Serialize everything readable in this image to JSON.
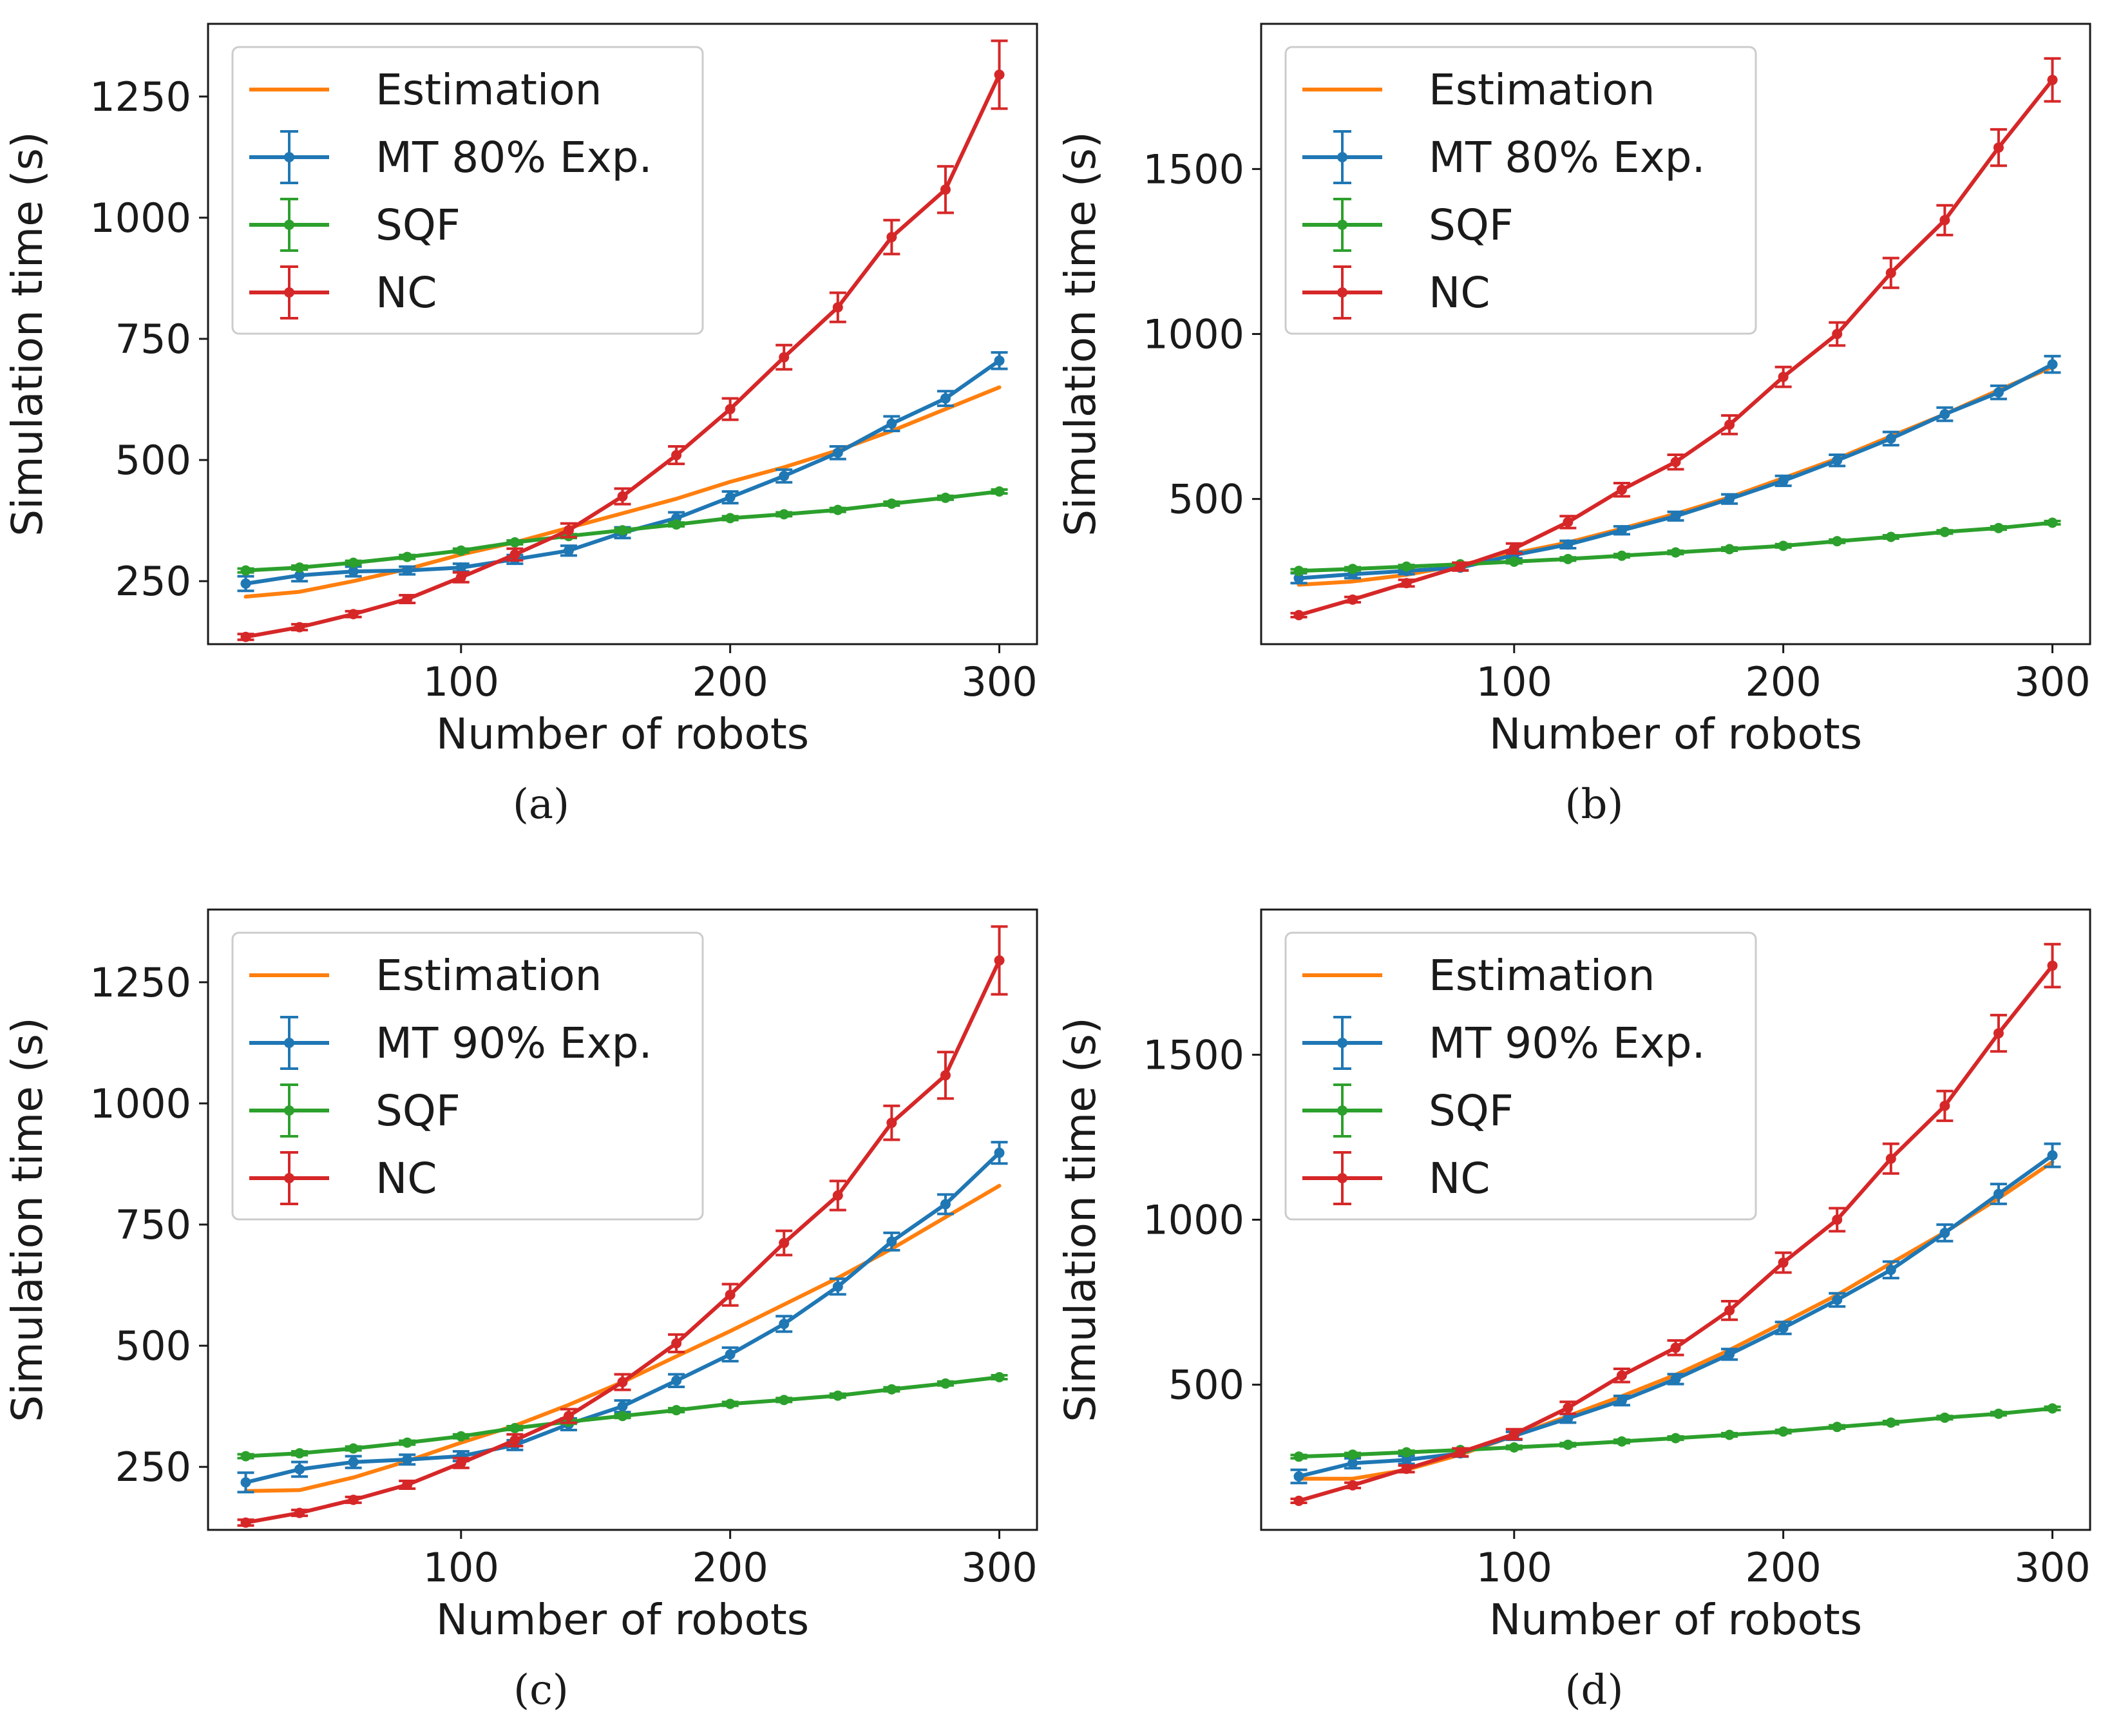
{
  "chart_data": [
    {
      "type": "line",
      "caption": "(a)",
      "xlabel": "Number of robots",
      "ylabel": "Simulation time (s)",
      "xlim": [
        6,
        314
      ],
      "ylim": [
        120,
        1400
      ],
      "xticks": [
        100,
        200,
        300
      ],
      "yticks": [
        250,
        500,
        750,
        1000,
        1250
      ],
      "grid": false,
      "legend_position": "top-left",
      "x": [
        20,
        40,
        60,
        80,
        100,
        120,
        140,
        160,
        180,
        200,
        220,
        240,
        260,
        280,
        300
      ],
      "series": [
        {
          "name": "Estimation",
          "color": "#ff7f0e",
          "marker": false,
          "values": [
            218,
            228,
            250,
            275,
            305,
            330,
            360,
            390,
            420,
            455,
            485,
            520,
            560,
            605,
            650
          ]
        },
        {
          "name": "MT 80% Exp.",
          "color": "#1f77b4",
          "marker": true,
          "values": [
            245,
            262,
            270,
            272,
            278,
            295,
            313,
            350,
            380,
            423,
            467,
            515,
            575,
            627,
            705
          ],
          "errors": [
            15,
            12,
            10,
            8,
            8,
            9,
            10,
            11,
            12,
            12,
            13,
            13,
            15,
            15,
            17
          ]
        },
        {
          "name": "SQF",
          "color": "#2ca02c",
          "marker": true,
          "values": [
            272,
            278,
            288,
            300,
            313,
            330,
            343,
            355,
            367,
            380,
            388,
            397,
            410,
            422,
            435
          ],
          "errors": [
            4,
            4,
            4,
            4,
            4,
            4,
            4,
            4,
            4,
            4,
            4,
            4,
            4,
            4,
            4
          ]
        },
        {
          "name": "NC",
          "color": "#d62728",
          "marker": true,
          "values": [
            135,
            155,
            182,
            213,
            258,
            305,
            355,
            425,
            510,
            605,
            712,
            815,
            960,
            1058,
            1295
          ],
          "errors": [
            6,
            6,
            6,
            8,
            10,
            12,
            14,
            16,
            18,
            22,
            25,
            30,
            35,
            48,
            70
          ]
        }
      ]
    },
    {
      "type": "line",
      "caption": "(b)",
      "xlabel": "Number of robots",
      "ylabel": "Simulation time (s)",
      "xlim": [
        6,
        314
      ],
      "ylim": [
        60,
        1940
      ],
      "xticks": [
        100,
        200,
        300
      ],
      "yticks": [
        500,
        1000,
        1500
      ],
      "grid": false,
      "legend_position": "top-left",
      "x": [
        20,
        40,
        60,
        80,
        100,
        120,
        140,
        160,
        180,
        200,
        220,
        240,
        260,
        280,
        300
      ],
      "series": [
        {
          "name": "Estimation",
          "color": "#ff7f0e",
          "marker": false,
          "values": [
            240,
            250,
            270,
            300,
            335,
            368,
            410,
            455,
            505,
            563,
            622,
            690,
            757,
            830,
            900
          ]
        },
        {
          "name": "MT 80% Exp.",
          "color": "#1f77b4",
          "marker": true,
          "values": [
            260,
            272,
            282,
            292,
            330,
            362,
            405,
            448,
            500,
            555,
            617,
            683,
            757,
            823,
            908
          ],
          "errors": [
            15,
            12,
            10,
            8,
            10,
            11,
            12,
            13,
            14,
            15,
            17,
            20,
            20,
            20,
            25
          ]
        },
        {
          "name": "SQF",
          "color": "#2ca02c",
          "marker": true,
          "values": [
            282,
            288,
            295,
            302,
            310,
            318,
            328,
            338,
            348,
            358,
            372,
            385,
            400,
            412,
            428
          ],
          "errors": [
            5,
            5,
            5,
            5,
            5,
            5,
            5,
            5,
            5,
            5,
            5,
            5,
            5,
            5,
            5
          ]
        },
        {
          "name": "NC",
          "color": "#d62728",
          "marker": true,
          "values": [
            148,
            195,
            245,
            295,
            350,
            430,
            528,
            612,
            725,
            870,
            1000,
            1185,
            1345,
            1565,
            1770
          ],
          "errors": [
            6,
            8,
            10,
            12,
            15,
            18,
            20,
            22,
            28,
            30,
            35,
            45,
            45,
            55,
            65
          ]
        }
      ]
    },
    {
      "type": "line",
      "caption": "(c)",
      "xlabel": "Number of robots",
      "ylabel": "Simulation time (s)",
      "xlim": [
        6,
        314
      ],
      "ylim": [
        120,
        1400
      ],
      "xticks": [
        100,
        200,
        300
      ],
      "yticks": [
        250,
        500,
        750,
        1000,
        1250
      ],
      "grid": false,
      "legend_position": "top-left",
      "x": [
        20,
        40,
        60,
        80,
        100,
        120,
        140,
        160,
        180,
        200,
        220,
        240,
        260,
        280,
        300
      ],
      "series": [
        {
          "name": "Estimation",
          "color": "#ff7f0e",
          "marker": false,
          "values": [
            200,
            202,
            228,
            262,
            300,
            335,
            378,
            425,
            478,
            530,
            585,
            640,
            700,
            765,
            830
          ]
        },
        {
          "name": "MT 90% Exp.",
          "color": "#1f77b4",
          "marker": true,
          "values": [
            218,
            245,
            260,
            265,
            272,
            295,
            338,
            375,
            428,
            482,
            545,
            622,
            715,
            792,
            898
          ],
          "errors": [
            20,
            15,
            12,
            10,
            10,
            10,
            12,
            12,
            13,
            14,
            16,
            16,
            18,
            20,
            22
          ]
        },
        {
          "name": "SQF",
          "color": "#2ca02c",
          "marker": true,
          "values": [
            272,
            278,
            288,
            300,
            313,
            330,
            343,
            355,
            367,
            380,
            388,
            397,
            410,
            422,
            435
          ],
          "errors": [
            4,
            4,
            4,
            4,
            4,
            4,
            4,
            4,
            4,
            4,
            4,
            4,
            4,
            4,
            4
          ]
        },
        {
          "name": "NC",
          "color": "#d62728",
          "marker": true,
          "values": [
            135,
            155,
            182,
            213,
            258,
            305,
            355,
            425,
            505,
            605,
            712,
            810,
            960,
            1058,
            1295
          ],
          "errors": [
            6,
            6,
            6,
            8,
            10,
            12,
            14,
            16,
            18,
            22,
            25,
            30,
            35,
            48,
            70
          ]
        }
      ]
    },
    {
      "type": "line",
      "caption": "(d)",
      "xlabel": "Number of robots",
      "ylabel": "Simulation time (s)",
      "xlim": [
        6,
        314
      ],
      "ylim": [
        60,
        1940
      ],
      "xticks": [
        100,
        200,
        300
      ],
      "yticks": [
        500,
        1000,
        1500
      ],
      "grid": false,
      "legend_position": "top-left",
      "x": [
        20,
        40,
        60,
        80,
        100,
        120,
        140,
        160,
        180,
        200,
        220,
        240,
        260,
        280,
        300
      ],
      "series": [
        {
          "name": "Estimation",
          "color": "#ff7f0e",
          "marker": false,
          "values": [
            215,
            215,
            242,
            288,
            345,
            405,
            465,
            530,
            605,
            688,
            772,
            868,
            962,
            1065,
            1175
          ]
        },
        {
          "name": "MT 90% Exp.",
          "color": "#1f77b4",
          "marker": true,
          "values": [
            222,
            262,
            272,
            292,
            345,
            398,
            452,
            517,
            592,
            672,
            757,
            848,
            960,
            1078,
            1195
          ],
          "errors": [
            20,
            15,
            12,
            10,
            12,
            13,
            14,
            15,
            16,
            18,
            20,
            25,
            25,
            30,
            35
          ]
        },
        {
          "name": "SQF",
          "color": "#2ca02c",
          "marker": true,
          "values": [
            282,
            288,
            295,
            302,
            310,
            318,
            328,
            338,
            348,
            358,
            372,
            385,
            400,
            412,
            428
          ],
          "errors": [
            5,
            5,
            5,
            5,
            5,
            5,
            5,
            5,
            5,
            5,
            5,
            5,
            5,
            5,
            5
          ]
        },
        {
          "name": "NC",
          "color": "#d62728",
          "marker": true,
          "values": [
            148,
            195,
            245,
            295,
            350,
            430,
            528,
            612,
            725,
            870,
            1000,
            1185,
            1345,
            1565,
            1770
          ],
          "errors": [
            6,
            8,
            10,
            12,
            15,
            18,
            20,
            22,
            28,
            30,
            35,
            45,
            45,
            55,
            65
          ]
        }
      ]
    }
  ]
}
